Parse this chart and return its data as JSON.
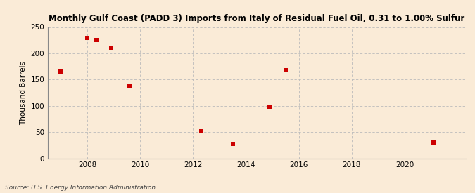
{
  "title": "Monthly Gulf Coast (PADD 3) Imports from Italy of Residual Fuel Oil, 0.31 to 1.00% Sulfur",
  "ylabel": "Thousand Barrels",
  "source": "Source: U.S. Energy Information Administration",
  "background_color": "#faebd7",
  "marker_color": "#cc0000",
  "xlim": [
    2006.5,
    2022.3
  ],
  "ylim": [
    0,
    250
  ],
  "yticks": [
    0,
    50,
    100,
    150,
    200,
    250
  ],
  "xticks": [
    2008,
    2010,
    2012,
    2014,
    2016,
    2018,
    2020
  ],
  "data_x": [
    2007.0,
    2008.0,
    2008.35,
    2008.9,
    2009.6,
    2012.3,
    2013.5,
    2014.9,
    2015.5,
    2021.1
  ],
  "data_y": [
    165,
    229,
    225,
    211,
    138,
    52,
    27,
    97,
    168,
    30
  ]
}
